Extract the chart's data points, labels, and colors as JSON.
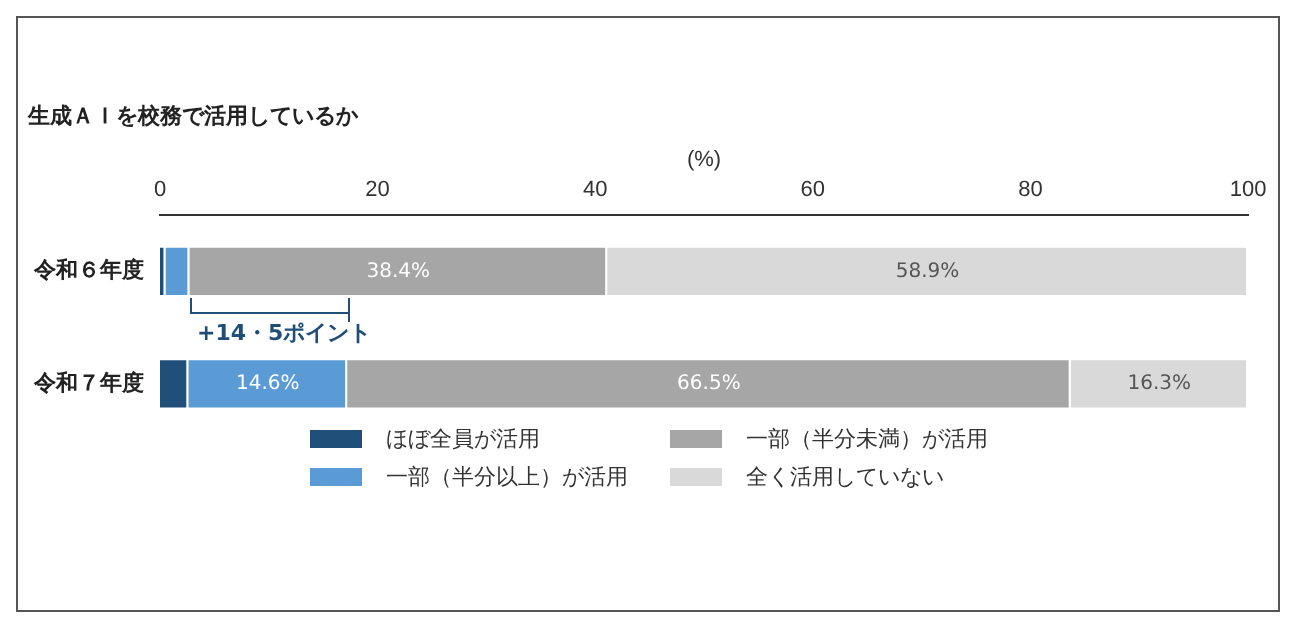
{
  "chart_data": {
    "type": "bar",
    "orientation": "horizontal",
    "stacked": true,
    "title": "生成ＡＩを校務で活用しているか",
    "xlabel": "(%)",
    "categories": [
      "令和６年度",
      "令和７年度"
    ],
    "series": [
      {
        "name": "ほぼ全員が活用",
        "color": "#1f4e79",
        "values": [
          0.5,
          2.6
        ],
        "value_labels": [
          null,
          null
        ]
      },
      {
        "name": "一部（半分以上）が活用",
        "color": "#5b9bd5",
        "values": [
          2.2,
          14.6
        ],
        "value_labels": [
          null,
          "14.6%"
        ]
      },
      {
        "name": "一部（半分未満）が活用",
        "color": "#a6a6a6",
        "values": [
          38.4,
          66.5
        ],
        "value_labels": [
          "38.4%",
          "66.5%"
        ]
      },
      {
        "name": "全く活用していない",
        "color": "#d9d9d9",
        "values": [
          58.9,
          16.3
        ],
        "value_labels": [
          "58.9%",
          "16.3%"
        ]
      }
    ],
    "xlim": [
      0,
      100
    ],
    "xticks": [
      0,
      20,
      40,
      60,
      80,
      100
    ],
    "grid": false,
    "legend": "bottom",
    "annotations": [
      "+14・5ポイント"
    ]
  }
}
